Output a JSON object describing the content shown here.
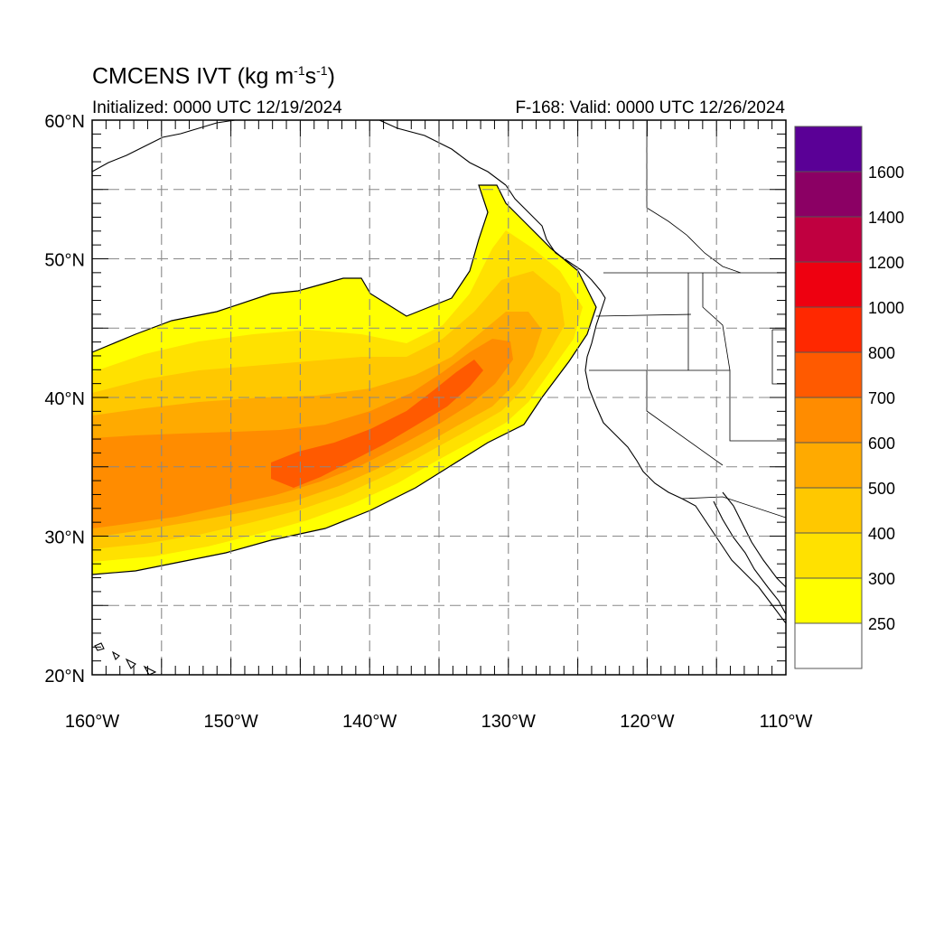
{
  "title": {
    "main": "CMCENS IVT (kg m",
    "sup1": "-1",
    "mid": "s",
    "sup2": "-1",
    "close": ")"
  },
  "initialized": "Initialized: 0000 UTC 12/19/2024",
  "valid": "F-168: Valid: 0000 UTC 12/26/2024",
  "map": {
    "lon_range": [
      -160,
      -110
    ],
    "lat_range": [
      20,
      60
    ],
    "grid_spacing_deg": 5,
    "grid": true,
    "lat_labels": [
      "20°N",
      "30°N",
      "40°N",
      "50°N",
      "60°N"
    ],
    "lat_values": [
      20,
      30,
      40,
      50,
      60
    ],
    "lon_labels": [
      "160°W",
      "150°W",
      "140°W",
      "130°W",
      "120°W",
      "110°W"
    ],
    "lon_values": [
      -160,
      -150,
      -140,
      -130,
      -120,
      -110
    ]
  },
  "colorbar": {
    "levels": [
      "250",
      "300",
      "400",
      "500",
      "600",
      "700",
      "800",
      "1000",
      "1200",
      "1400",
      "1600"
    ],
    "colors": [
      "#ffffff",
      "#ffff00",
      "#ffe100",
      "#ffc800",
      "#ffaa00",
      "#ff8c00",
      "#ff5a00",
      "#ff2800",
      "#ee0010",
      "#c00040",
      "#8b0064",
      "#5a0096"
    ]
  },
  "ivt_bands": [
    {
      "level": 250,
      "color": "#ffff00"
    },
    {
      "level": 300,
      "color": "#ffe100"
    },
    {
      "level": 400,
      "color": "#ffc800"
    },
    {
      "level": 500,
      "color": "#ffaa00"
    },
    {
      "level": 600,
      "color": "#ff8c00"
    },
    {
      "level": 700,
      "color": "#ff5a00"
    }
  ]
}
